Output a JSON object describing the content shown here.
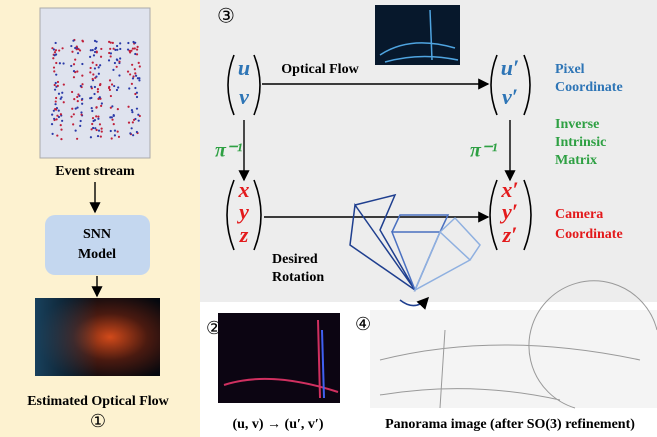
{
  "left_panel": {
    "event_stream_label": "Event stream",
    "model_box": [
      "SNN",
      "Model"
    ],
    "flow_label": "Estimated Optical Flow",
    "marker": "①"
  },
  "main_panel": {
    "marker": "③",
    "optical_flow_label": "Optical Flow",
    "source_vector": [
      "u",
      "v"
    ],
    "target_vector": [
      "u′",
      "v′"
    ],
    "pixel_label": [
      "Pixel",
      "Coordinate"
    ],
    "inverse_left": "π⁻¹",
    "inverse_right": "π⁻¹",
    "intrinsic_label": [
      "Inverse",
      "Intrinsic",
      "Matrix"
    ],
    "camera_vector": [
      "x",
      "y",
      "z"
    ],
    "rotated_vector": [
      "x′",
      "y′",
      "z′"
    ],
    "camera_label": [
      "Camera",
      "Coordinate"
    ],
    "rotation_label": [
      "Desired",
      "Rotation"
    ]
  },
  "bottom": {
    "flow_marker": "②",
    "flow_caption": "(u, v) → (u′, v′)",
    "panorama_marker": "④",
    "panorama_caption": "Panorama image (after SO(3) refinement)"
  }
}
